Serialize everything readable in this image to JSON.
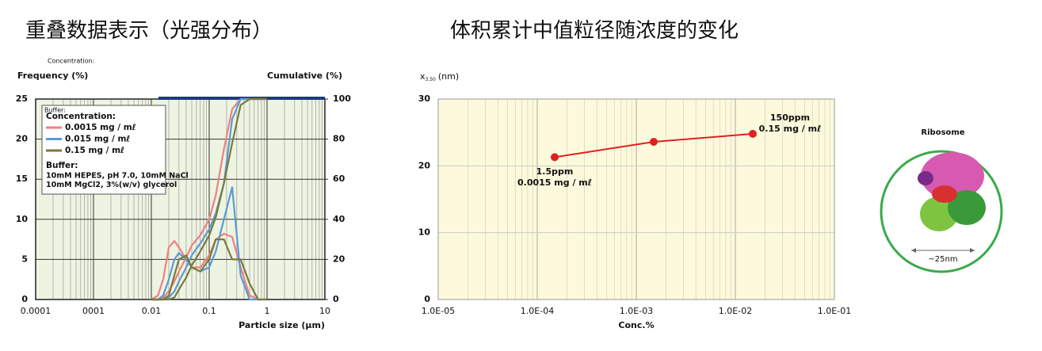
{
  "chart_data": [
    {
      "type": "line",
      "title": "重叠数据表示（光强分布）",
      "note": "Concentration:",
      "ylabel": "Frequency (%)",
      "y2label": "Cumulative (%)",
      "xlabel": "Particle size (μm)",
      "xscale": "log",
      "xlim": [
        0.0001,
        10
      ],
      "xticks": [
        0.0001,
        {
          "value": 0.001,
          "label": "0001"
        },
        0.01,
        0.1,
        1,
        10
      ],
      "ylim": [
        0,
        25
      ],
      "yticks": [
        0,
        5,
        10,
        15,
        20,
        25
      ],
      "y2lim": [
        0,
        100
      ],
      "y2ticks": [
        0,
        20,
        40,
        60,
        80,
        100
      ],
      "grid": true,
      "x": [
        0.01,
        0.013,
        0.016,
        0.02,
        0.025,
        0.03,
        0.04,
        0.05,
        0.07,
        0.1,
        0.13,
        0.18,
        0.25,
        0.35,
        0.5,
        0.7,
        1
      ],
      "legend": {
        "title_small": "Buffer:",
        "title": "Concentration:",
        "buffer_title": "Buffer:",
        "buffer_lines": [
          "10mM HEPES, pH 7.0, 10mM NaCl",
          "10mM MgCl2, 3%(w/v) glycerol"
        ]
      },
      "series": [
        {
          "name": "0.0015 mg / mℓ",
          "color": "#f08080",
          "values": [
            0,
            0.5,
            2.5,
            6.5,
            7.3,
            6.5,
            5,
            4,
            4,
            5.5,
            7.5,
            8.2,
            7.8,
            4,
            0.5,
            0,
            0
          ],
          "cumulative": [
            0,
            0,
            1,
            4,
            9,
            14,
            21,
            27,
            32,
            40,
            52,
            75,
            95,
            100,
            100,
            100,
            100
          ]
        },
        {
          "name": "0.015 mg / mℓ",
          "color": "#5b9bd5",
          "values": [
            0,
            0,
            0.5,
            2.5,
            5,
            5.8,
            5,
            4,
            3.5,
            4,
            6,
            10,
            14,
            3,
            0,
            0,
            0
          ],
          "cumulative": [
            0,
            0,
            0,
            1,
            4,
            9,
            16,
            22,
            28,
            35,
            43,
            58,
            90,
            100,
            100,
            100,
            100
          ]
        },
        {
          "name": "0.15 mg / mℓ",
          "color": "#7a7a3a",
          "values": [
            0,
            0,
            0,
            0.5,
            3,
            5,
            5.5,
            4,
            3.5,
            5,
            7.5,
            7.5,
            5,
            5,
            2,
            0,
            0
          ],
          "cumulative": [
            0,
            0,
            0,
            0,
            1,
            5,
            11,
            17,
            24,
            32,
            41,
            58,
            78,
            97,
            100,
            100,
            100
          ]
        }
      ]
    },
    {
      "type": "line",
      "title": "体积累计中值粒径随浓度的变化",
      "ylabel": {
        "base": "x",
        "sub": "3,50",
        "unit": "(nm)"
      },
      "xlabel": "Conc.%",
      "xscale": "log",
      "xlim": [
        1e-05,
        0.1
      ],
      "xticks": [
        {
          "value": 1e-05,
          "label": "1.0E-05"
        },
        {
          "value": 0.0001,
          "label": "1.0E-04"
        },
        {
          "value": 0.001,
          "label": "1.0E-03"
        },
        {
          "value": 0.01,
          "label": "1.0E-02"
        },
        {
          "value": 0.1,
          "label": "1.0E-01"
        }
      ],
      "ylim": [
        0,
        30
      ],
      "yticks": [
        0,
        10,
        20,
        30
      ],
      "grid": true,
      "x": [
        0.00015,
        0.0015,
        0.015
      ],
      "series": [
        {
          "color": "#e02020",
          "values": [
            21.3,
            23.6,
            24.8
          ]
        }
      ],
      "annotations": [
        [
          "1.5ppm",
          "0.0015 mg / mℓ"
        ],
        [
          "150ppm",
          "0.15 mg / mℓ"
        ]
      ]
    }
  ],
  "illustration": {
    "title": "Ribosome",
    "scale": "~25nm"
  }
}
